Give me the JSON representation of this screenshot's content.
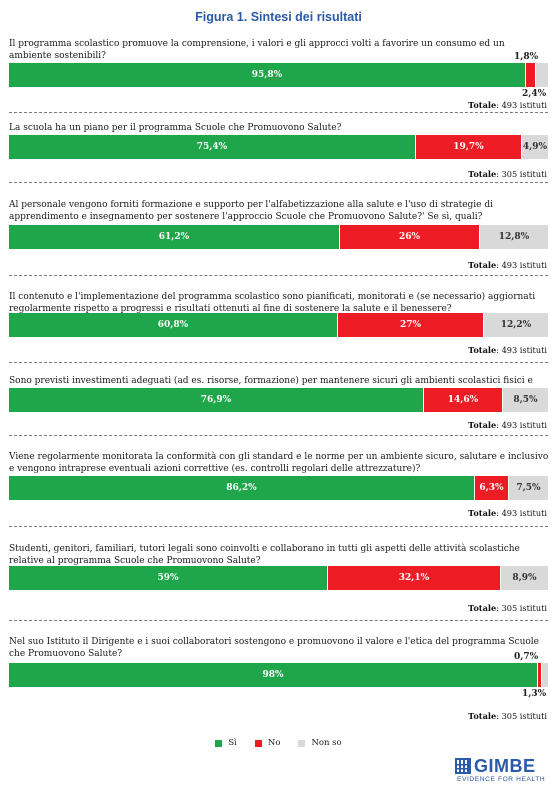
{
  "title": "Figura 1. Sintesi dei risultati",
  "colors": {
    "si": "#1fa64a",
    "no": "#ee1c25",
    "nonso": "#d9d9d9",
    "accent": "#2a5aa8"
  },
  "legend": [
    {
      "label": "Sì",
      "color": "#1fa64a"
    },
    {
      "label": "No",
      "color": "#ee1c25"
    },
    {
      "label": "Non so",
      "color": "#d9d9d9"
    }
  ],
  "chart_data": {
    "type": "bar",
    "orientation": "horizontal",
    "stacked": true,
    "series_names": [
      "Sì",
      "No",
      "Non so"
    ],
    "questions": [
      {
        "text": "Il programma scolastico promuove la comprensione, i valori e gli approcci volti a favorire un consumo ed un ambiente sostenibili?",
        "values": [
          95.8,
          1.8,
          2.4
        ],
        "labels": [
          "95,8%",
          "1,8%",
          "2,4%"
        ],
        "total_label": "Totale",
        "total_value": ": 493 istituti"
      },
      {
        "text": "La scuola ha un piano per il programma Scuole che Promuovono Salute?",
        "values": [
          75.4,
          19.7,
          4.9
        ],
        "labels": [
          "75,4%",
          "19,7%",
          "4,9%"
        ],
        "total_label": "Totale",
        "total_value": ": 305 istituti"
      },
      {
        "text": "Al personale vengono forniti formazione e supporto per l'alfabetizzazione alla salute e l'uso di strategie di apprendimento e insegnamento per sostenere l'approccio Scuole che Promuovono Salute?' Se sì, quali?",
        "values": [
          61.2,
          26,
          12.8
        ],
        "labels": [
          "61,2%",
          "26%",
          "12,8%"
        ],
        "total_label": "Totale",
        "total_value": ": 493 istituti"
      },
      {
        "text": "Il contenuto e l'implementazione del programma scolastico sono pianificati, monitorati e (se necessario) aggiornati regolarmente rispetto a progressi e risultati ottenuti al fine di sostenere la salute e il benessere?",
        "values": [
          60.8,
          27,
          12.2
        ],
        "labels": [
          "60,8%",
          "27%",
          "12,2%"
        ],
        "total_label": "Totale",
        "total_value": ": 493 istituti"
      },
      {
        "text": "Sono previsti investimenti adeguati (ad es. risorse, formazione) per mantenere sicuri gli ambienti scolastici fisici e virtuali?",
        "values": [
          76.9,
          14.6,
          8.5
        ],
        "labels": [
          "76,9%",
          "14,6%",
          "8,5%"
        ],
        "total_label": "Totale",
        "total_value": ": 493 istituti"
      },
      {
        "text": "Viene regolarmente monitorata la conformità con gli standard e le norme per un ambiente sicuro, salutare e inclusivo e vengono intraprese eventuali azioni correttive (es. controlli regolari delle attrezzature)?",
        "values": [
          86.2,
          6.3,
          7.5
        ],
        "labels": [
          "86,2%",
          "6,3%",
          "7,5%"
        ],
        "total_label": "Totale",
        "total_value": ": 493 istituti"
      },
      {
        "text": "Studenti, genitori, familiari, tutori legali sono coinvolti e collaborano in tutti gli aspetti delle attività scolastiche relative al programma Scuole che Promuovono Salute?",
        "values": [
          59,
          32.1,
          8.9
        ],
        "labels": [
          "59%",
          "32,1%",
          "8,9%"
        ],
        "total_label": "Totale",
        "total_value": ": 305 istituti"
      },
      {
        "text": "Nel suo Istituto il Dirigente e i suoi collaboratori sostengono e promuovono il valore e l'etica del programma Scuole che Promuovono Salute?",
        "values": [
          98,
          0.7,
          1.3
        ],
        "labels": [
          "98%",
          "0,7%",
          "1,3%"
        ],
        "total_label": "Totale",
        "total_value": ": 305 istituti"
      }
    ]
  },
  "logo": {
    "name": "GIMBE",
    "tagline": "EVIDENCE FOR HEALTH"
  }
}
